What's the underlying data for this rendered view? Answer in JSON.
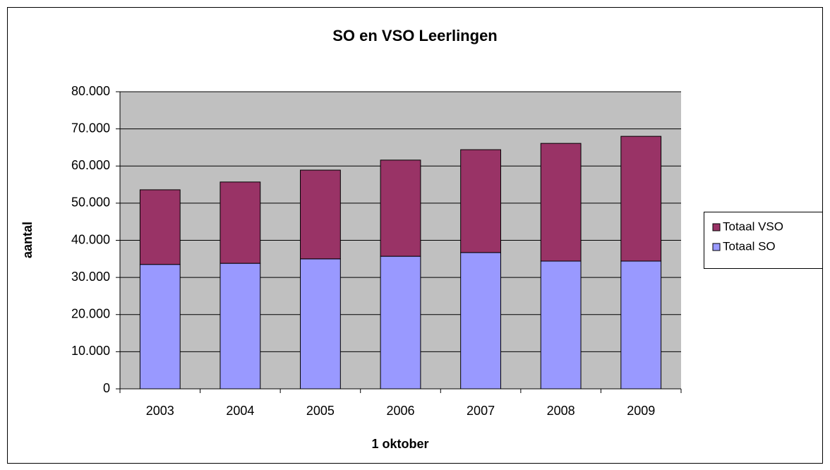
{
  "chart_data": {
    "type": "stacked_bar",
    "title": "SO en VSO Leerlingen",
    "x_label": "1 oktober",
    "y_label": "aantal",
    "categories": [
      "2003",
      "2004",
      "2005",
      "2006",
      "2007",
      "2008",
      "2009"
    ],
    "series": [
      {
        "name": "Totaal SO",
        "color": "#9999ff",
        "values": [
          33500,
          33800,
          35000,
          35700,
          36700,
          34400,
          34400
        ]
      },
      {
        "name": "Totaal VSO",
        "color": "#993366",
        "values": [
          20100,
          21900,
          23900,
          25900,
          27700,
          31700,
          33600
        ]
      }
    ],
    "ylim": [
      0,
      80000
    ],
    "yticks": [
      0,
      {
        "value": 10000,
        "label": "10.000"
      },
      {
        "value": 20000,
        "label": "20.000"
      },
      {
        "value": 30000,
        "label": "30.000"
      },
      {
        "value": 40000,
        "label": "40.000"
      },
      {
        "value": 50000,
        "label": "50.000"
      },
      {
        "value": 60000,
        "label": "60.000"
      },
      {
        "value": 70000,
        "label": "70.000"
      },
      {
        "value": 80000,
        "label": "80.000"
      }
    ],
    "grid": true,
    "legend": "right"
  }
}
